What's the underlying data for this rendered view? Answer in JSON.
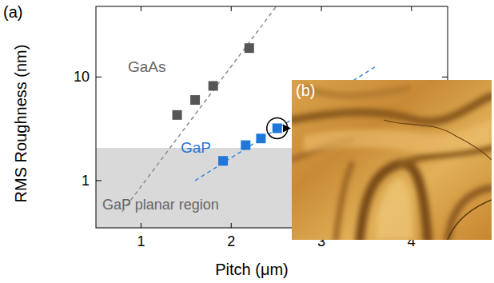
{
  "chart_data": {
    "type": "scatter",
    "log": "y",
    "xlabel": "Pitch (μm)",
    "ylabel": "RMS Roughness (nm)",
    "xlim": [
      0.5,
      4.4
    ],
    "ylim": [
      0.35,
      48
    ],
    "xticks": [
      1,
      2,
      3,
      4
    ],
    "yticks": [
      1,
      10
    ],
    "panel_labels": [
      "(a)",
      "(b)"
    ],
    "planar_region": {
      "label": "GaP planar region",
      "ymax": 2.07,
      "color": "#d9d9d9"
    },
    "series": [
      {
        "name": "GaAs",
        "color": "#555555",
        "marker": "square",
        "x": [
          1.4,
          1.6,
          1.8,
          2.2
        ],
        "values": [
          4.3,
          6.0,
          8.2,
          19
        ]
      },
      {
        "name": "GaP",
        "color": "#1f78d8",
        "marker": "square",
        "x": [
          1.91,
          2.16,
          2.33,
          2.51
        ],
        "values": [
          1.55,
          2.2,
          2.55,
          3.2
        ]
      },
      {
        "type": "line",
        "line_style": "dashed",
        "color": "#8c8c8c",
        "x": [
          0.79,
          2.5
        ],
        "values": [
          0.5,
          48
        ]
      },
      {
        "type": "line",
        "line_style": "dashed",
        "color": "#3a87d8",
        "x": [
          1.6,
          3.6
        ],
        "values": [
          1.0,
          12.6
        ]
      }
    ]
  }
}
